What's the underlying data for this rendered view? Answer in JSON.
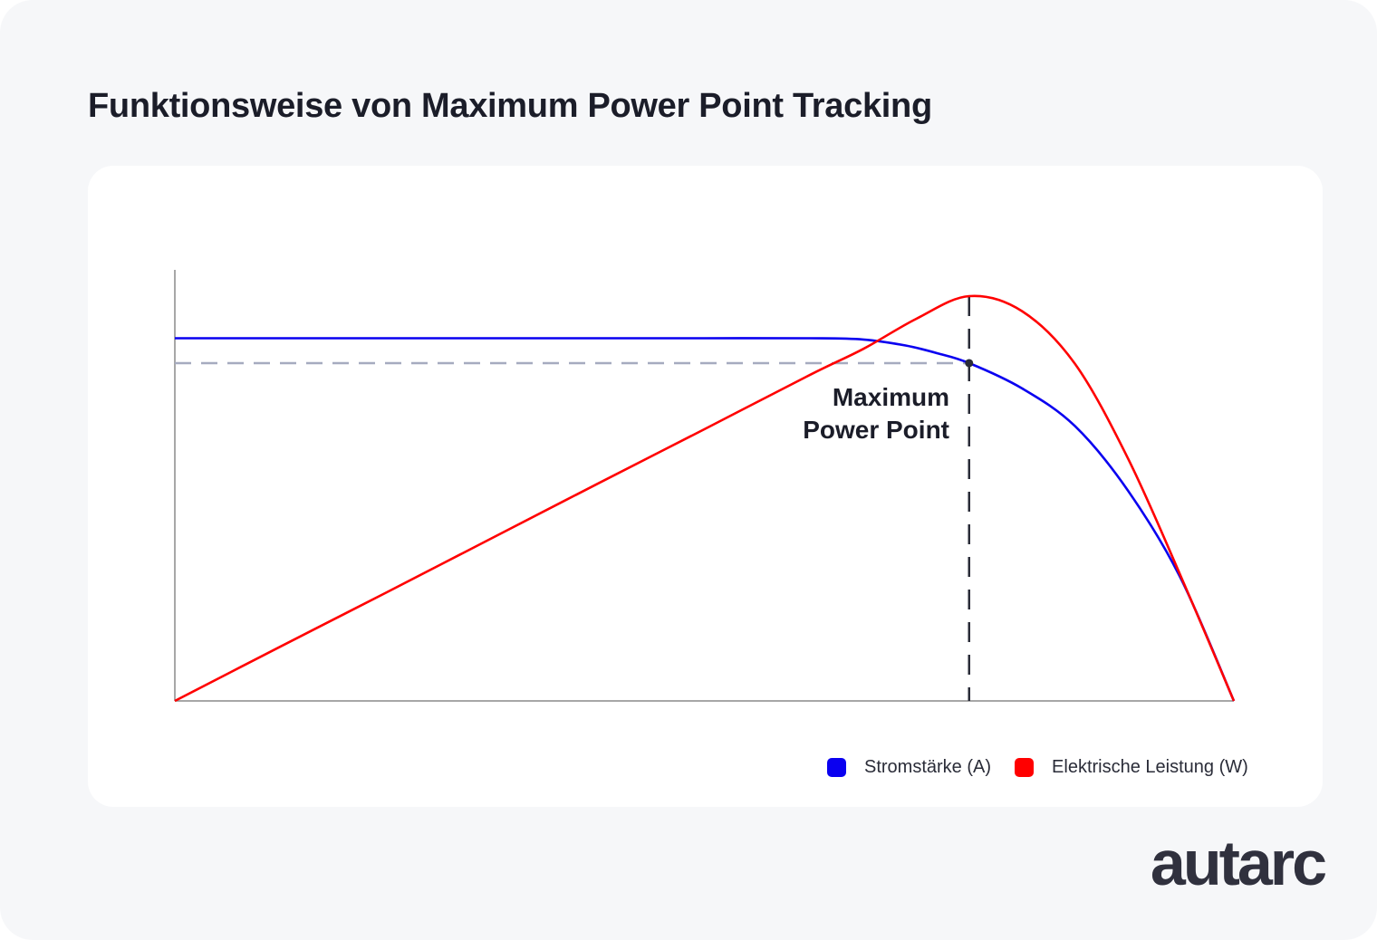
{
  "title": "Funktionsweise von Maximum Power Point Tracking",
  "brand": "autarc",
  "annotation": {
    "line1": "Maximum",
    "line2": "Power Point"
  },
  "legend": [
    {
      "label": "Stromstärke (A)",
      "color": "#0a00f0"
    },
    {
      "label": "Elektrische Leistung (W)",
      "color": "#ff0000"
    }
  ],
  "colors": {
    "background": "#f6f7f9",
    "card": "#ffffff",
    "text": "#1b1d29",
    "axis": "#8a8a8a",
    "reference_line": "#a6abbf",
    "mpp_line": "#2a2c38"
  },
  "chart_data": {
    "type": "line",
    "title": "Funktionsweise von Maximum Power Point Tracking",
    "xlabel": "",
    "ylabel": "",
    "xlim": [
      0,
      1
    ],
    "ylim": [
      0,
      1
    ],
    "grid": false,
    "axis_ticks": false,
    "legend_position": "bottom-right",
    "series": [
      {
        "name": "Stromstärke (A)",
        "color": "#0a00f0",
        "x": [
          0,
          0.1,
          0.2,
          0.3,
          0.4,
          0.5,
          0.6,
          0.65,
          0.69,
          0.72,
          0.75,
          0.8,
          0.85,
          0.9,
          0.95,
          1.0
        ],
        "y": [
          0.845,
          0.845,
          0.845,
          0.845,
          0.845,
          0.845,
          0.845,
          0.842,
          0.828,
          0.81,
          0.787,
          0.728,
          0.64,
          0.49,
          0.285,
          0.0
        ]
      },
      {
        "name": "Elektrische Leistung (W)",
        "color": "#ff0000",
        "x": [
          0,
          0.1,
          0.2,
          0.3,
          0.4,
          0.5,
          0.6,
          0.65,
          0.7,
          0.75,
          0.8,
          0.85,
          0.9,
          0.95,
          1.0
        ],
        "y": [
          0.0,
          0.127,
          0.253,
          0.38,
          0.507,
          0.633,
          0.76,
          0.82,
          0.89,
          0.943,
          0.908,
          0.785,
          0.565,
          0.29,
          0.0
        ]
      }
    ],
    "annotations": [
      {
        "text": "Maximum Power Point",
        "x": 0.75,
        "y": 0.787
      }
    ],
    "reference_lines": [
      {
        "orientation": "horizontal",
        "y": 0.787,
        "style": "dashed",
        "color": "#a6abbf"
      },
      {
        "orientation": "vertical",
        "x": 0.75,
        "style": "dashed",
        "color": "#2a2c38"
      }
    ]
  }
}
